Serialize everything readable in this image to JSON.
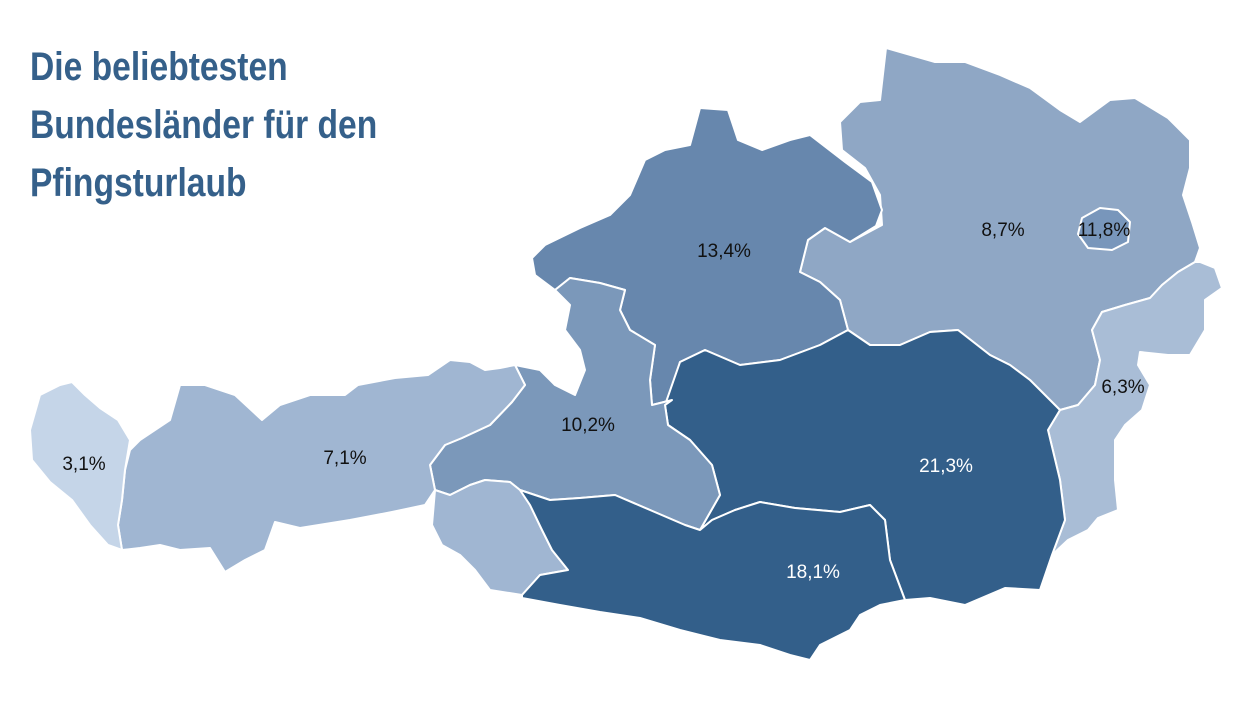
{
  "title": {
    "line1": "Die beliebtesten",
    "line2": "Bundesländer für den",
    "line3": "Pfingsturlaub"
  },
  "regions": [
    {
      "key": "vorarlberg",
      "label": "3,1%",
      "color": "#c5d5e8",
      "text_color": "#111111"
    },
    {
      "key": "tirol",
      "label": "7,1%",
      "color": "#a0b6d2",
      "text_color": "#111111"
    },
    {
      "key": "osttirol",
      "color": "#a0b6d2"
    },
    {
      "key": "salzburg",
      "label": "10,2%",
      "color": "#7b98ba",
      "text_color": "#111111"
    },
    {
      "key": "oberoesterreich",
      "label": "13,4%",
      "color": "#6787ad",
      "text_color": "#111111"
    },
    {
      "key": "niederoesterreich",
      "label": "8,7%",
      "color": "#8fa7c5",
      "text_color": "#111111"
    },
    {
      "key": "wien",
      "label": "11,8%",
      "color": "#7896bb",
      "text_color": "#111111"
    },
    {
      "key": "burgenland",
      "label": "6,3%",
      "color": "#a9bdd6",
      "text_color": "#111111"
    },
    {
      "key": "steiermark",
      "label": "21,3%",
      "color": "#335f8a",
      "text_color": "#ffffff"
    },
    {
      "key": "kaernten",
      "label": "18,1%",
      "color": "#335f8a",
      "text_color": "#ffffff"
    }
  ]
}
